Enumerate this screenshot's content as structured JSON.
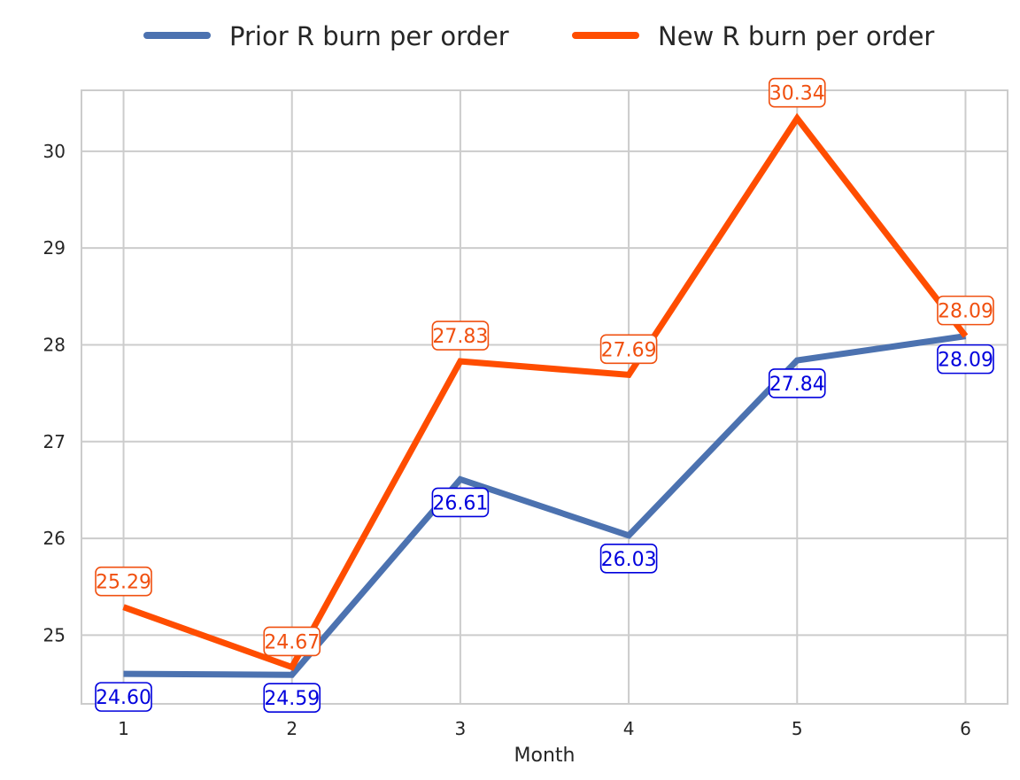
{
  "chart_data": {
    "type": "line",
    "title": "",
    "xlabel": "Month",
    "ylabel": "",
    "x": [
      1,
      2,
      3,
      4,
      5,
      6
    ],
    "xticks": [
      "1",
      "2",
      "3",
      "4",
      "5",
      "6"
    ],
    "yticks": [
      "25",
      "26",
      "27",
      "28",
      "29",
      "30"
    ],
    "xlim": [
      0.75,
      6.25
    ],
    "ylim": [
      24.29,
      30.63
    ],
    "grid": true,
    "legend_position": "top-center",
    "series": [
      {
        "name": "Prior R burn per order",
        "color": "#4c72b0",
        "label_color": "#0000dd",
        "values": [
          24.6,
          24.59,
          26.61,
          26.03,
          27.84,
          28.09
        ],
        "labels": [
          "24.60",
          "24.59",
          "26.61",
          "26.03",
          "27.84",
          "28.09"
        ],
        "label_position": "below"
      },
      {
        "name": "New R burn per order",
        "color": "#ff4d00",
        "label_color": "#f05010",
        "values": [
          25.29,
          24.67,
          27.83,
          27.69,
          30.34,
          28.09
        ],
        "labels": [
          "25.29",
          "24.67",
          "27.83",
          "27.69",
          "30.34",
          "28.09"
        ],
        "label_position": "above"
      }
    ]
  }
}
